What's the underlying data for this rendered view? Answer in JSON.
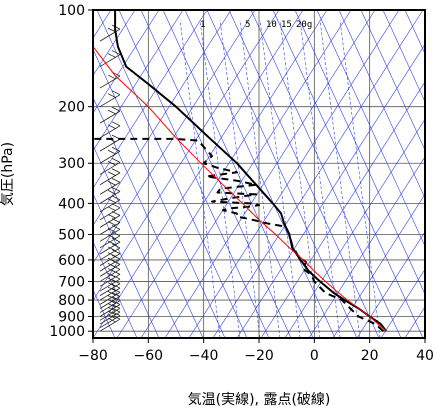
{
  "chart_data": {
    "type": "line",
    "title": "",
    "xlabel": "気温(実線), 露点(破線)",
    "ylabel": "気圧(hPa)",
    "x_range": [
      -80,
      40
    ],
    "y_range": [
      1050,
      100
    ],
    "y_scale": "log",
    "x_ticks": [
      -80,
      -60,
      -40,
      -20,
      0,
      20,
      40
    ],
    "x_tick_labels": [
      "−80",
      "−60",
      "−40",
      "−20",
      "0",
      "20",
      "40"
    ],
    "y_ticks": [
      100,
      200,
      300,
      400,
      500,
      600,
      700,
      800,
      900,
      1000
    ],
    "y_tick_labels": [
      "100",
      "200",
      "300",
      "400",
      "500",
      "600",
      "700",
      "800",
      "900",
      "1000"
    ],
    "mixing_ratio_labels": [
      "1",
      "5",
      "10",
      "15",
      "20g"
    ],
    "grid": true,
    "series": [
      {
        "style": "solid",
        "color": "#000000",
        "points": [
          [
            26,
            1000
          ],
          [
            24,
            950
          ],
          [
            20,
            900
          ],
          [
            16,
            850
          ],
          [
            11,
            800
          ],
          [
            7,
            760
          ],
          [
            2,
            700
          ],
          [
            -2,
            650
          ],
          [
            -5,
            600
          ],
          [
            -8,
            550
          ],
          [
            -9,
            500
          ],
          [
            -11,
            460
          ],
          [
            -12,
            430
          ],
          [
            -15,
            400
          ],
          [
            -21,
            350
          ],
          [
            -28,
            300
          ],
          [
            -38,
            250
          ],
          [
            -50,
            200
          ],
          [
            -60,
            170
          ],
          [
            -68,
            150
          ],
          [
            -71,
            130
          ],
          [
            -72,
            115
          ],
          [
            -72,
            100
          ]
        ]
      },
      {
        "style": "dashed",
        "color": "#000000",
        "points": [
          [
            25,
            1000
          ],
          [
            22,
            950
          ],
          [
            16,
            900
          ],
          [
            13,
            850
          ],
          [
            10,
            800
          ],
          [
            4,
            760
          ],
          [
            0,
            700
          ],
          [
            -1,
            670
          ],
          [
            -4,
            640
          ],
          [
            -3,
            610
          ],
          [
            -6,
            580
          ],
          [
            -8,
            540
          ],
          [
            -9,
            500
          ],
          [
            -10,
            480
          ],
          [
            -12,
            470
          ],
          [
            -18,
            460
          ],
          [
            -20,
            455
          ],
          [
            -25,
            445
          ],
          [
            -28,
            440
          ],
          [
            -28,
            430
          ],
          [
            -33,
            420
          ],
          [
            -31,
            415
          ],
          [
            -24,
            410
          ],
          [
            -20,
            405
          ],
          [
            -23,
            400
          ],
          [
            -37,
            395
          ],
          [
            -30,
            385
          ],
          [
            -21,
            375
          ],
          [
            -35,
            370
          ],
          [
            -34,
            360
          ],
          [
            -21,
            350
          ],
          [
            -28,
            340
          ],
          [
            -39,
            330
          ],
          [
            -28,
            320
          ],
          [
            -35,
            310
          ],
          [
            -40,
            300
          ],
          [
            -37,
            285
          ],
          [
            -42,
            255
          ],
          [
            -50,
            252
          ],
          [
            -65,
            252
          ],
          [
            -80,
            252
          ]
        ]
      },
      {
        "style": "solid",
        "color": "#ff0000",
        "points": [
          [
            26,
            1000
          ],
          [
            23,
            950
          ],
          [
            20,
            900
          ],
          [
            16,
            850
          ],
          [
            12,
            800
          ],
          [
            8,
            750
          ],
          [
            4,
            700
          ],
          [
            0,
            650
          ],
          [
            -4,
            600
          ],
          [
            -9,
            550
          ],
          [
            -14,
            500
          ],
          [
            -20,
            450
          ],
          [
            -26,
            400
          ],
          [
            -33,
            350
          ],
          [
            -41,
            300
          ],
          [
            -50,
            250
          ],
          [
            -60,
            200
          ],
          [
            -72,
            160
          ],
          [
            -80,
            130
          ]
        ]
      }
    ],
    "wind_barbs": "column at left edge (x ≈ -80 to -70) from 1000 to 120 hPa"
  }
}
